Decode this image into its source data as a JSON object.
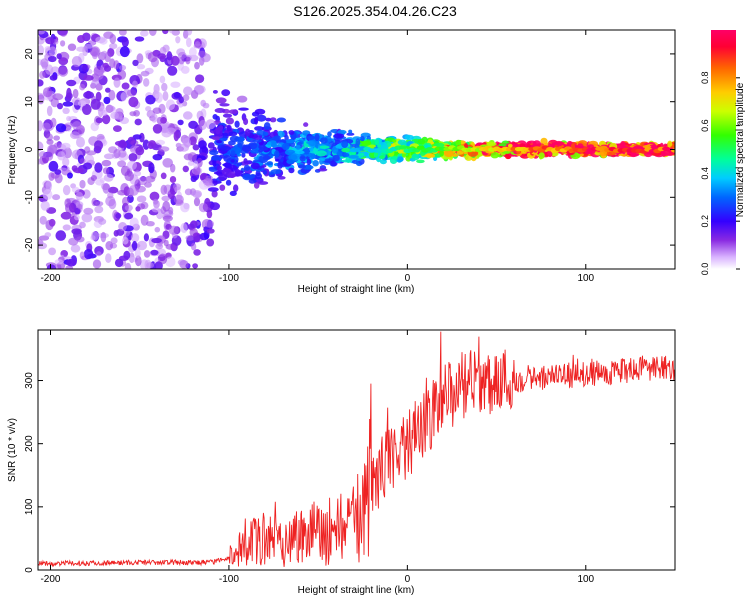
{
  "title": "S126.2025.354.04.26.C23",
  "chart_data": [
    {
      "type": "heatmap",
      "xlabel": "Height of straight line (km)",
      "ylabel": "Frequency (Hz)",
      "xlim": [
        -207,
        150
      ],
      "ylim": [
        -25,
        25
      ],
      "xticks": [
        -200,
        -100,
        0,
        100
      ],
      "yticks": [
        -20,
        -10,
        0,
        10,
        20
      ],
      "colorbar": {
        "label": "Normalized spectral amplitude",
        "range": [
          0,
          1
        ],
        "ticks": [
          "0.0",
          "0.2",
          "0.4",
          "0.6",
          "0.8"
        ],
        "tick_values": [
          0.0,
          0.2,
          0.4,
          0.6,
          0.8
        ]
      },
      "description": "Broadband noise (weak, scattered) below about -100 km; energy narrows toward 0 Hz and grows to strong amplitude above 0 km.",
      "profile": {
        "height": [
          -207,
          -150,
          -120,
          -100,
          -80,
          -60,
          -40,
          -20,
          0,
          20,
          40,
          60,
          80,
          100,
          120,
          150
        ],
        "bandwidth_hz": [
          25,
          25,
          25,
          14,
          9,
          6,
          5,
          3.5,
          3,
          2.5,
          2,
          2,
          2,
          1.5,
          1.5,
          1.5
        ],
        "peak_amplitude": [
          0.15,
          0.15,
          0.15,
          0.2,
          0.25,
          0.3,
          0.3,
          0.45,
          0.5,
          0.6,
          0.75,
          0.85,
          0.9,
          0.95,
          0.95,
          0.95
        ]
      }
    },
    {
      "type": "line",
      "xlabel": "Height of straight line (km)",
      "ylabel": "SNR (10 * v/v)",
      "xlim": [
        -207,
        150
      ],
      "ylim": [
        0,
        380
      ],
      "xticks": [
        -200,
        -100,
        0,
        100
      ],
      "yticks": [
        0,
        100,
        200,
        300
      ],
      "series": [
        {
          "name": "SNR",
          "color": "#ee2222",
          "x": [
            -207,
            -150,
            -110,
            -100,
            -90,
            -80,
            -70,
            -60,
            -50,
            -40,
            -30,
            -20,
            -10,
            0,
            10,
            20,
            30,
            40,
            60,
            80,
            100,
            120,
            150
          ],
          "y": [
            10,
            12,
            12,
            20,
            40,
            50,
            45,
            55,
            60,
            65,
            70,
            130,
            180,
            200,
            230,
            270,
            290,
            300,
            300,
            305,
            310,
            315,
            320
          ]
        }
      ]
    }
  ]
}
